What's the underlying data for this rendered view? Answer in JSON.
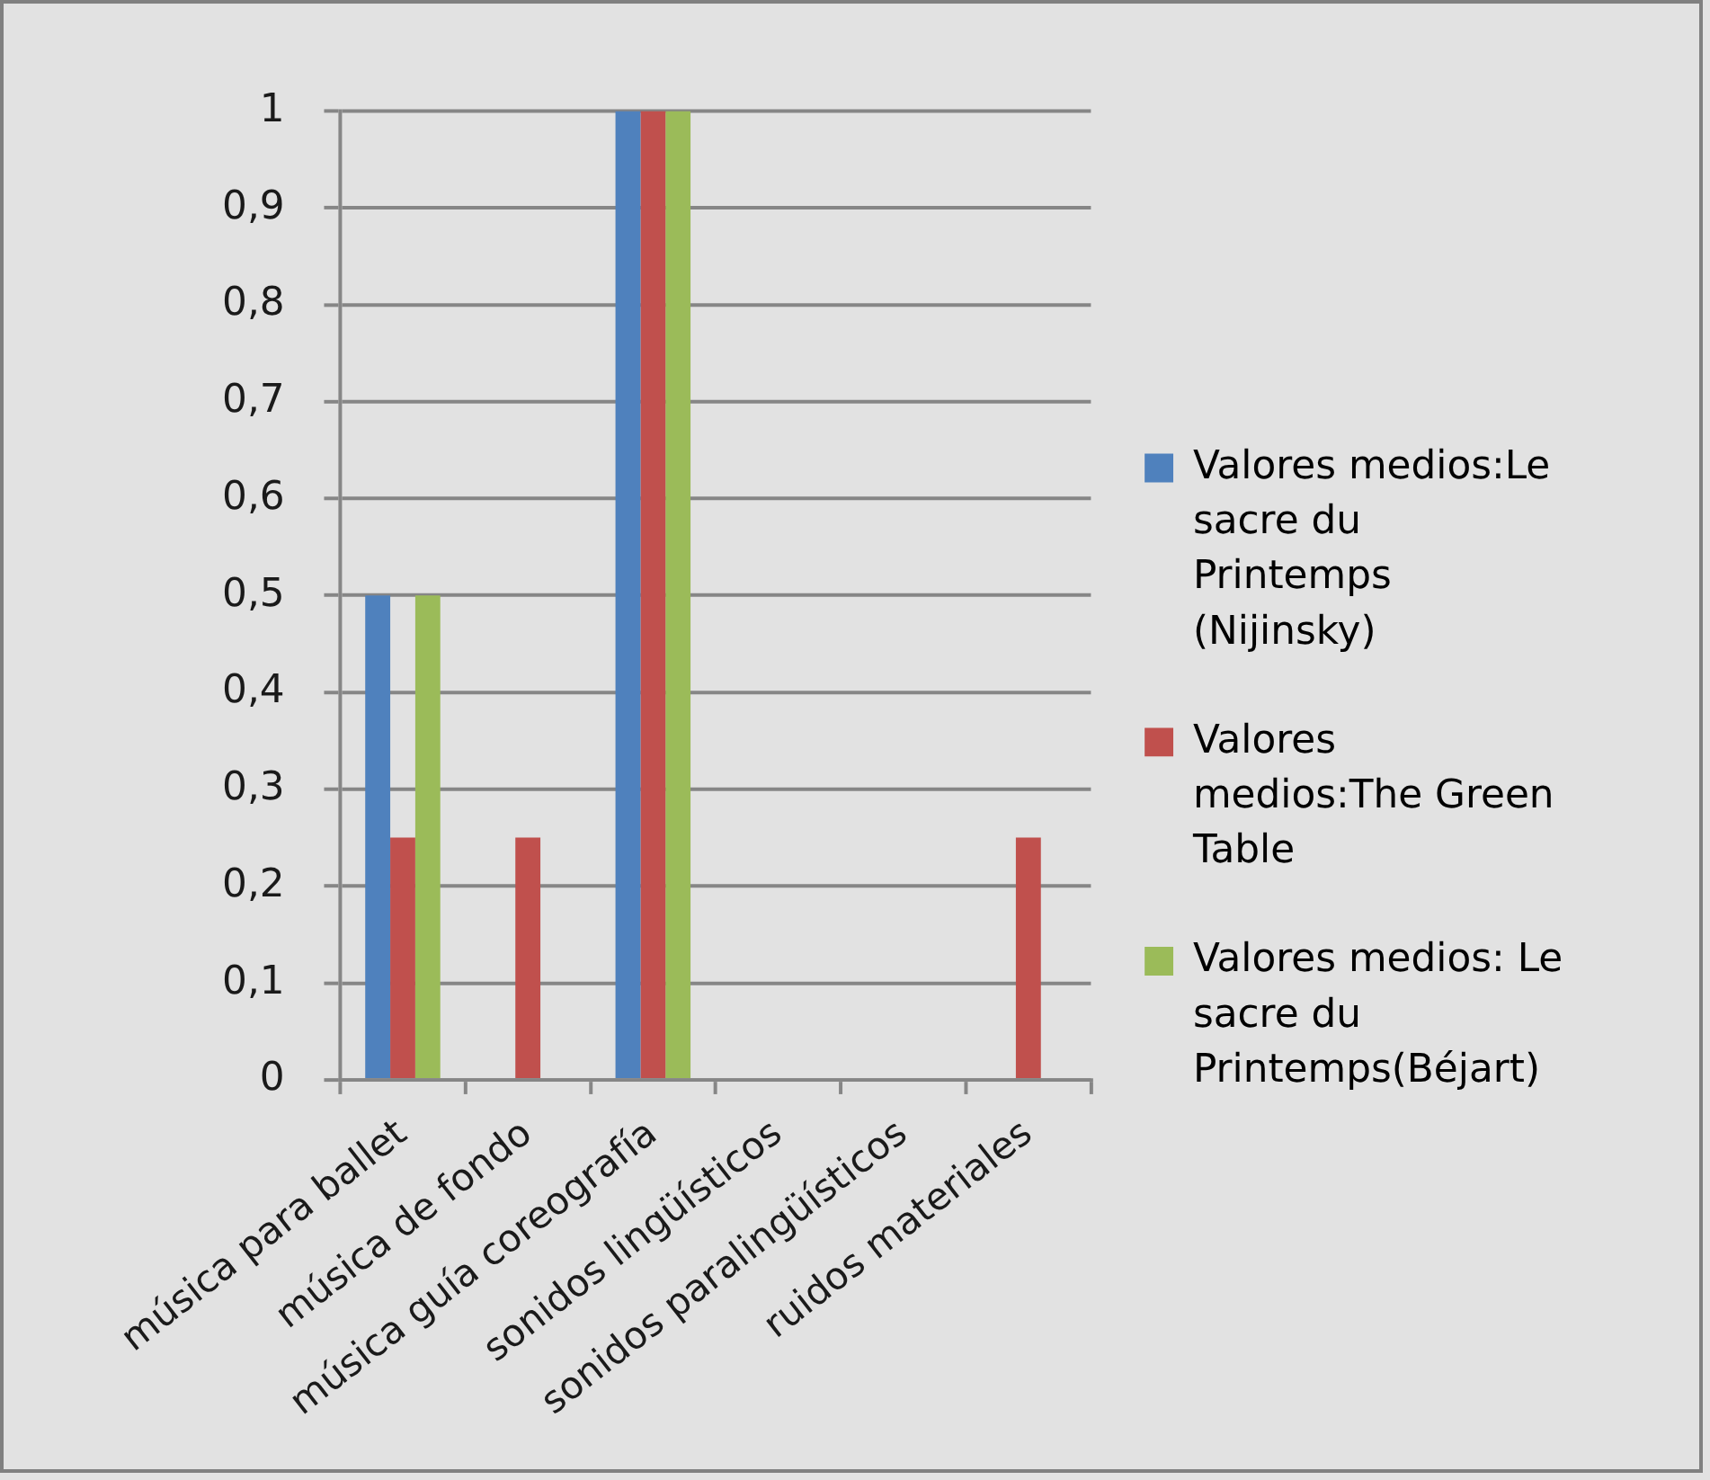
{
  "chart_data": {
    "type": "bar",
    "categories": [
      "música para ballet",
      "música de fondo",
      "música guía coreografía",
      "sonidos lingüísticos",
      "sonidos paralingüísticos",
      "ruidos materiales"
    ],
    "series": [
      {
        "name": "Valores medios:Le sacre du Printemps (Nijinsky)",
        "color": "#4f81bd",
        "values": [
          0.5,
          0,
          1,
          0,
          0,
          0
        ]
      },
      {
        "name": "Valores medios:The Green Table",
        "color": "#c0504d",
        "values": [
          0.25,
          0.25,
          1,
          0,
          0,
          0.25
        ]
      },
      {
        "name": "Valores medios: Le sacre du Printemps(Béjart)",
        "color": "#9bbb59",
        "values": [
          0.5,
          0,
          1,
          0,
          0,
          0
        ]
      }
    ],
    "ylim": [
      0,
      1
    ],
    "yticks": [
      0,
      {
        "value": 0.1,
        "label": "0,1"
      },
      {
        "value": 0.2,
        "label": "0,2"
      },
      {
        "value": 0.3,
        "label": "0,3"
      },
      {
        "value": 0.4,
        "label": "0,4"
      },
      {
        "value": 0.5,
        "label": "0,5"
      },
      {
        "value": 0.6,
        "label": "0,6"
      },
      {
        "value": 0.7,
        "label": "0,7"
      },
      {
        "value": 0.8,
        "label": "0,8"
      },
      {
        "value": 0.9,
        "label": "0,9"
      },
      1
    ],
    "grid": "y",
    "legend": "right"
  }
}
